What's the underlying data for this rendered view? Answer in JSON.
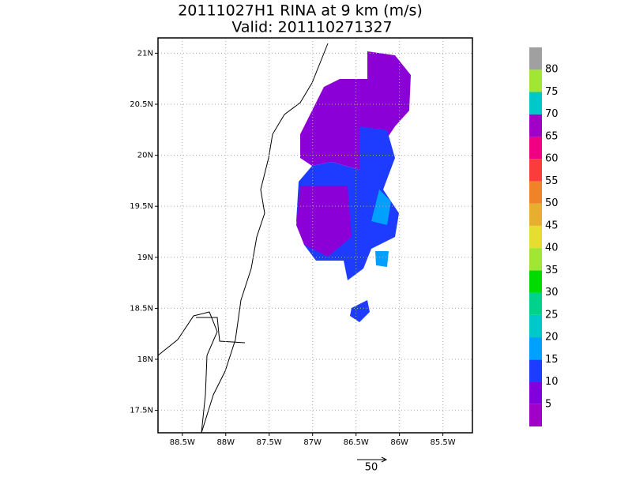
{
  "title": "20111027H1 RINA at 9 km (m/s)",
  "subtitle": "Valid: 201110271327",
  "map": {
    "xlim": [
      -88.78,
      -85.16
    ],
    "ylim": [
      17.28,
      21.15
    ],
    "xticks": [
      {
        "value": -88.5,
        "label": "88.5W"
      },
      {
        "value": -88,
        "label": "88W"
      },
      {
        "value": -87.5,
        "label": "87.5W"
      },
      {
        "value": -87,
        "label": "87W"
      },
      {
        "value": -86.5,
        "label": "86.5W"
      },
      {
        "value": -86,
        "label": "86W"
      },
      {
        "value": -85.5,
        "label": "85.5W"
      }
    ],
    "yticks": [
      {
        "value": 17.5,
        "label": "17.5N"
      },
      {
        "value": 18,
        "label": "18N"
      },
      {
        "value": 18.5,
        "label": "18.5N"
      },
      {
        "value": 19,
        "label": "19N"
      },
      {
        "value": 19.5,
        "label": "19.5N"
      },
      {
        "value": 20,
        "label": "20N"
      },
      {
        "value": 20.5,
        "label": "20.5N"
      },
      {
        "value": 21,
        "label": "21N"
      }
    ],
    "grid": true
  },
  "colorbar": {
    "labels": [
      5,
      10,
      15,
      20,
      25,
      30,
      35,
      40,
      45,
      50,
      55,
      60,
      65,
      70,
      75,
      80
    ],
    "colors": [
      "#a000c8",
      "#8200dc",
      "#1e3cff",
      "#00a0ff",
      "#00c8c8",
      "#00d28c",
      "#00dc00",
      "#a0e632",
      "#e6dc32",
      "#e6af2d",
      "#f08228",
      "#fa3c3c",
      "#f00082",
      "#a000c8",
      "#00c8c8",
      "#a0e632",
      "#a0a0a0"
    ]
  },
  "reference_vector": {
    "label": "50"
  }
}
